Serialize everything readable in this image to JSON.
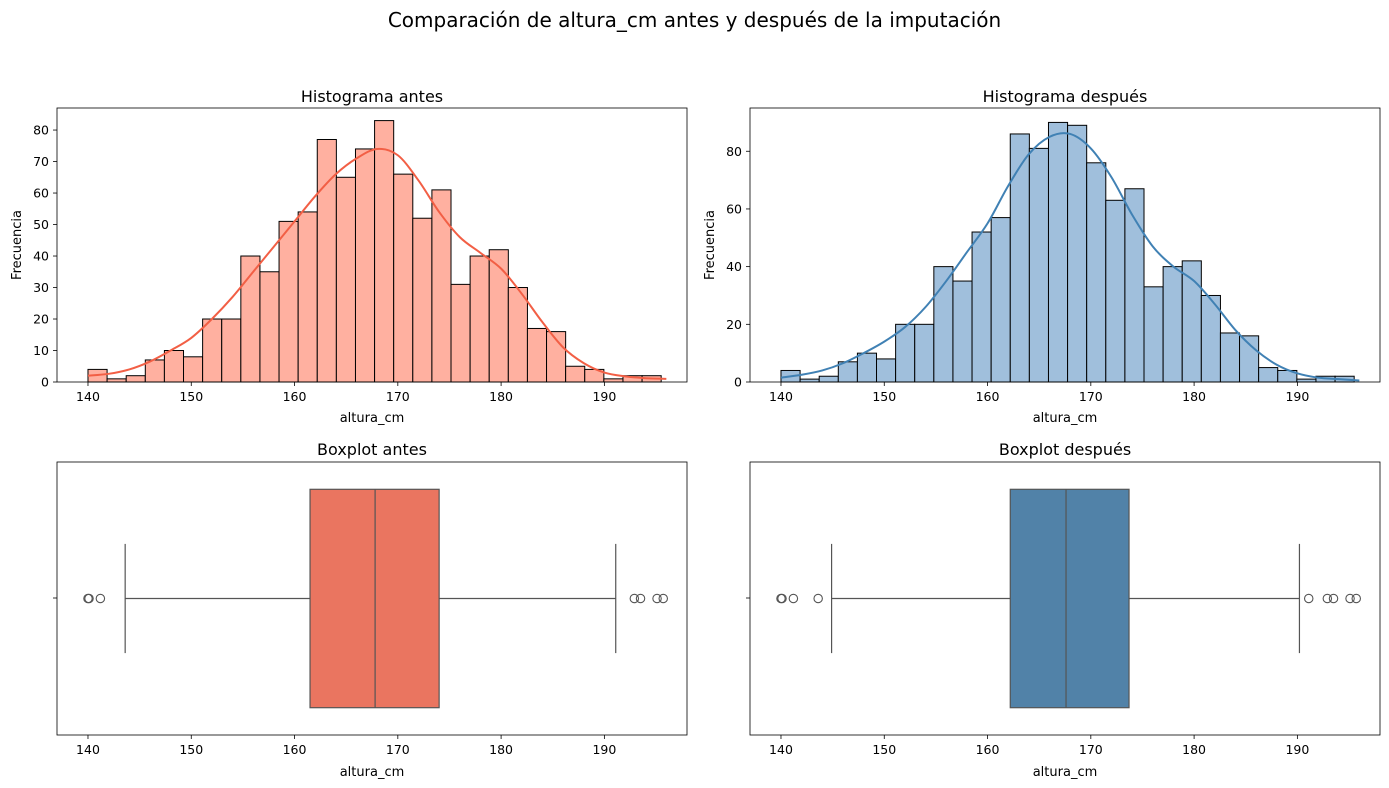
{
  "figure": {
    "suptitle": "Comparación de altura_cm antes y después de la imputación"
  },
  "chart_data": [
    {
      "type": "bar",
      "subtype": "histogram-with-kde",
      "title": "Histograma antes",
      "xlabel": "altura_cm",
      "ylabel": "Frecuencia",
      "xlim": [
        137,
        198
      ],
      "ylim": [
        0,
        87
      ],
      "xticks": [
        140,
        150,
        160,
        170,
        180,
        190
      ],
      "yticks": [
        0,
        10,
        20,
        30,
        40,
        50,
        60,
        70,
        80
      ],
      "bin_start": 140,
      "bin_width": 1.85,
      "values": [
        4,
        1,
        2,
        7,
        10,
        8,
        20,
        20,
        40,
        35,
        51,
        54,
        77,
        65,
        74,
        83,
        66,
        52,
        61,
        31,
        40,
        42,
        30,
        17,
        16,
        5,
        4,
        1,
        2,
        2
      ],
      "kde": {
        "x": [
          140,
          142,
          144,
          146,
          148,
          150,
          152,
          154,
          156,
          158,
          160,
          162,
          164,
          166,
          168,
          170,
          172,
          174,
          176,
          178,
          180,
          182,
          184,
          186,
          188,
          190,
          192,
          194,
          196
        ],
        "y": [
          2,
          2.6,
          4,
          6.5,
          10,
          14,
          20,
          27,
          35,
          43,
          51,
          59,
          66,
          71,
          74,
          72,
          64,
          54,
          46,
          41,
          36,
          28,
          19,
          11,
          6,
          3,
          1.8,
          1.2,
          1
        ]
      },
      "colors": {
        "bar": "#ffb0a0",
        "edge": "#000000",
        "kde": "#f25f45"
      },
      "grid": false
    },
    {
      "type": "bar",
      "subtype": "histogram-with-kde",
      "title": "Histograma después",
      "xlabel": "altura_cm",
      "ylabel": "Frecuencia",
      "xlim": [
        137,
        198
      ],
      "ylim": [
        0,
        95
      ],
      "xticks": [
        140,
        150,
        160,
        170,
        180,
        190
      ],
      "yticks": [
        0,
        20,
        40,
        60,
        80
      ],
      "bin_start": 140,
      "bin_width": 1.85,
      "values": [
        4,
        1,
        2,
        7,
        10,
        8,
        20,
        20,
        40,
        35,
        52,
        57,
        86,
        81,
        90,
        89,
        76,
        63,
        67,
        33,
        40,
        42,
        30,
        17,
        16,
        5,
        4,
        1,
        2,
        2
      ],
      "kde": {
        "x": [
          140,
          142,
          144,
          146,
          148,
          150,
          152,
          154,
          156,
          158,
          160,
          162,
          164,
          166,
          168,
          170,
          172,
          174,
          176,
          178,
          180,
          182,
          184,
          186,
          188,
          190,
          192,
          194,
          196
        ],
        "y": [
          1.5,
          2.5,
          4,
          6.5,
          10,
          14,
          19,
          26,
          35,
          45,
          55,
          68,
          79,
          85,
          86,
          81,
          71,
          58,
          47,
          40,
          35,
          27,
          18,
          11,
          6,
          3,
          1.5,
          1,
          0.5
        ]
      },
      "colors": {
        "bar": "#a0bfdc",
        "edge": "#000000",
        "kde": "#4081b4"
      },
      "grid": false
    },
    {
      "type": "boxplot",
      "title": "Boxplot antes",
      "xlabel": "altura_cm",
      "xlim": [
        137,
        198
      ],
      "xticks": [
        140,
        150,
        160,
        170,
        180,
        190
      ],
      "q1": 161.5,
      "median": 167.8,
      "q3": 174.0,
      "whisker_low": 143.6,
      "whisker_high": 191.1,
      "outliers": [
        140.0,
        140.1,
        141.2,
        192.9,
        193.5,
        195.1,
        195.7
      ],
      "colors": {
        "box": "#ea7560",
        "line": "#555555"
      }
    },
    {
      "type": "boxplot",
      "title": "Boxplot después",
      "xlabel": "altura_cm",
      "xlim": [
        137,
        198
      ],
      "xticks": [
        140,
        150,
        160,
        170,
        180,
        190
      ],
      "q1": 162.2,
      "median": 167.6,
      "q3": 173.7,
      "whisker_low": 144.9,
      "whisker_high": 190.2,
      "outliers": [
        140.0,
        140.1,
        141.2,
        143.6,
        191.1,
        192.9,
        193.5,
        195.1,
        195.7
      ],
      "colors": {
        "box": "#5182a8",
        "line": "#555555"
      }
    }
  ]
}
